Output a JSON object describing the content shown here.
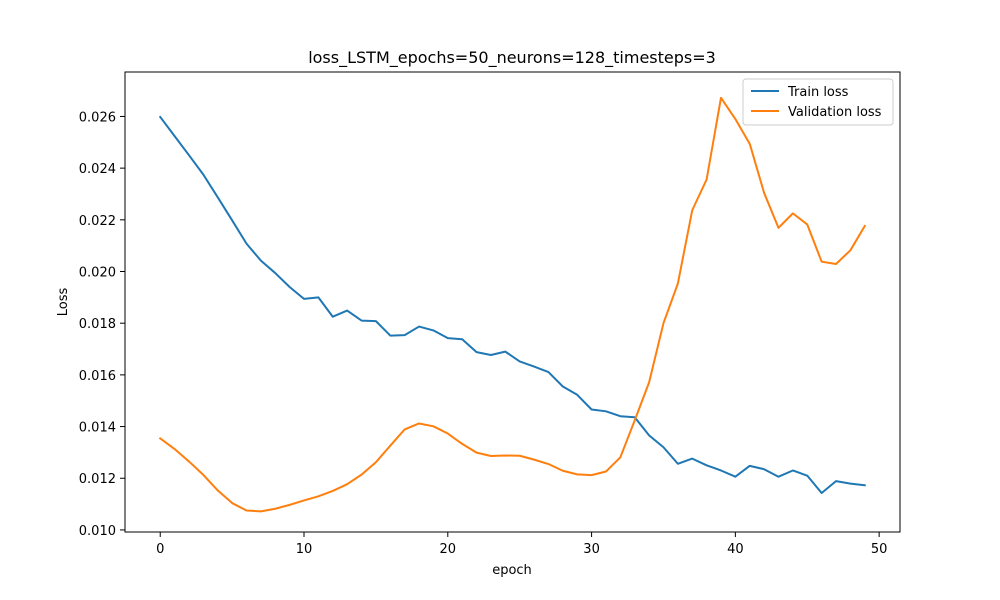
{
  "chart_data": {
    "type": "line",
    "title": "loss_LSTM_epochs=50_neurons=128_timesteps=3",
    "xlabel": "epoch",
    "ylabel": "Loss",
    "xlim": [
      -2.45,
      51.45
    ],
    "ylim": [
      0.00992,
      0.02772
    ],
    "xticks": [
      0,
      10,
      20,
      30,
      40,
      50
    ],
    "yticks": [
      0.01,
      0.012,
      0.014,
      0.016,
      0.018,
      0.02,
      0.022,
      0.024,
      0.026
    ],
    "xtick_labels": [
      "0",
      "10",
      "20",
      "30",
      "40",
      "50"
    ],
    "ytick_labels": [
      "0.010",
      "0.012",
      "0.014",
      "0.016",
      "0.018",
      "0.020",
      "0.022",
      "0.024",
      "0.026"
    ],
    "grid": false,
    "legend_position": "upper right",
    "x": [
      0,
      1,
      2,
      3,
      4,
      5,
      6,
      7,
      8,
      9,
      10,
      11,
      12,
      13,
      14,
      15,
      16,
      17,
      18,
      19,
      20,
      21,
      22,
      23,
      24,
      25,
      26,
      27,
      28,
      29,
      30,
      31,
      32,
      33,
      34,
      35,
      36,
      37,
      38,
      39,
      40,
      41,
      42,
      43,
      44,
      45,
      46,
      47,
      48,
      49
    ],
    "series": [
      {
        "name": "Train loss",
        "color": "#1f77b4",
        "values": [
          0.02598,
          0.02524,
          0.0245,
          0.02375,
          0.02287,
          0.02198,
          0.02108,
          0.02042,
          0.01994,
          0.0194,
          0.01894,
          0.019,
          0.01825,
          0.01849,
          0.0181,
          0.01808,
          0.01752,
          0.01754,
          0.01787,
          0.01772,
          0.01742,
          0.01738,
          0.01688,
          0.01677,
          0.0169,
          0.01652,
          0.01632,
          0.01611,
          0.01555,
          0.01523,
          0.01466,
          0.01459,
          0.0144,
          0.01436,
          0.01366,
          0.0132,
          0.01256,
          0.01276,
          0.0125,
          0.0123,
          0.01206,
          0.01248,
          0.01235,
          0.01206,
          0.0123,
          0.0121,
          0.01143,
          0.01189,
          0.01179,
          0.01173
        ]
      },
      {
        "name": "Validation loss",
        "color": "#ff7f0e",
        "values": [
          0.01354,
          0.01313,
          0.01265,
          0.01213,
          0.01153,
          0.01104,
          0.01075,
          0.01072,
          0.01082,
          0.01097,
          0.01114,
          0.0113,
          0.01151,
          0.01177,
          0.01214,
          0.01262,
          0.01326,
          0.01389,
          0.01412,
          0.01401,
          0.01373,
          0.01333,
          0.01299,
          0.01286,
          0.01288,
          0.01287,
          0.01272,
          0.01255,
          0.01229,
          0.01215,
          0.01212,
          0.01226,
          0.01281,
          0.01424,
          0.01571,
          0.018,
          0.01953,
          0.02237,
          0.02356,
          0.02672,
          0.0259,
          0.02494,
          0.02304,
          0.02169,
          0.02225,
          0.02182,
          0.02038,
          0.02029,
          0.02082,
          0.02176
        ]
      }
    ]
  }
}
